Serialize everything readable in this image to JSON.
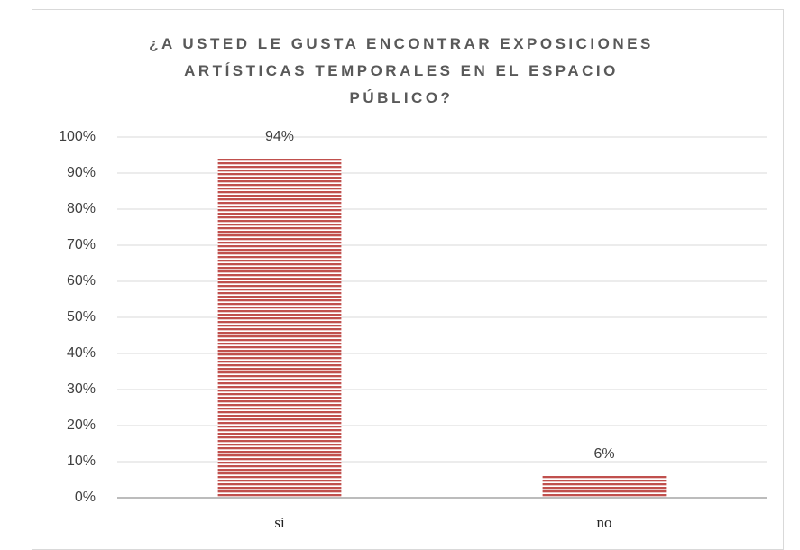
{
  "chart_data": {
    "type": "bar",
    "title": "¿A USTED LE GUSTA ENCONTRAR EXPOSICIONES ARTÍSTICAS TEMPORALES EN EL ESPACIO PÚBLICO?",
    "categories": [
      "si",
      "no"
    ],
    "values": [
      94,
      6
    ],
    "value_labels": [
      "94%",
      "6%"
    ],
    "color": "#c0504d",
    "ylim": [
      0,
      100
    ],
    "yticks": [
      {
        "value": 0,
        "label": "0%"
      },
      {
        "value": 10,
        "label": "10%"
      },
      {
        "value": 20,
        "label": "20%"
      },
      {
        "value": 30,
        "label": "30%"
      },
      {
        "value": 40,
        "label": "40%"
      },
      {
        "value": 50,
        "label": "50%"
      },
      {
        "value": 60,
        "label": "60%"
      },
      {
        "value": 70,
        "label": "70%"
      },
      {
        "value": 80,
        "label": "80%"
      },
      {
        "value": 90,
        "label": "90%"
      },
      {
        "value": 100,
        "label": "100%"
      }
    ],
    "grid": true
  }
}
